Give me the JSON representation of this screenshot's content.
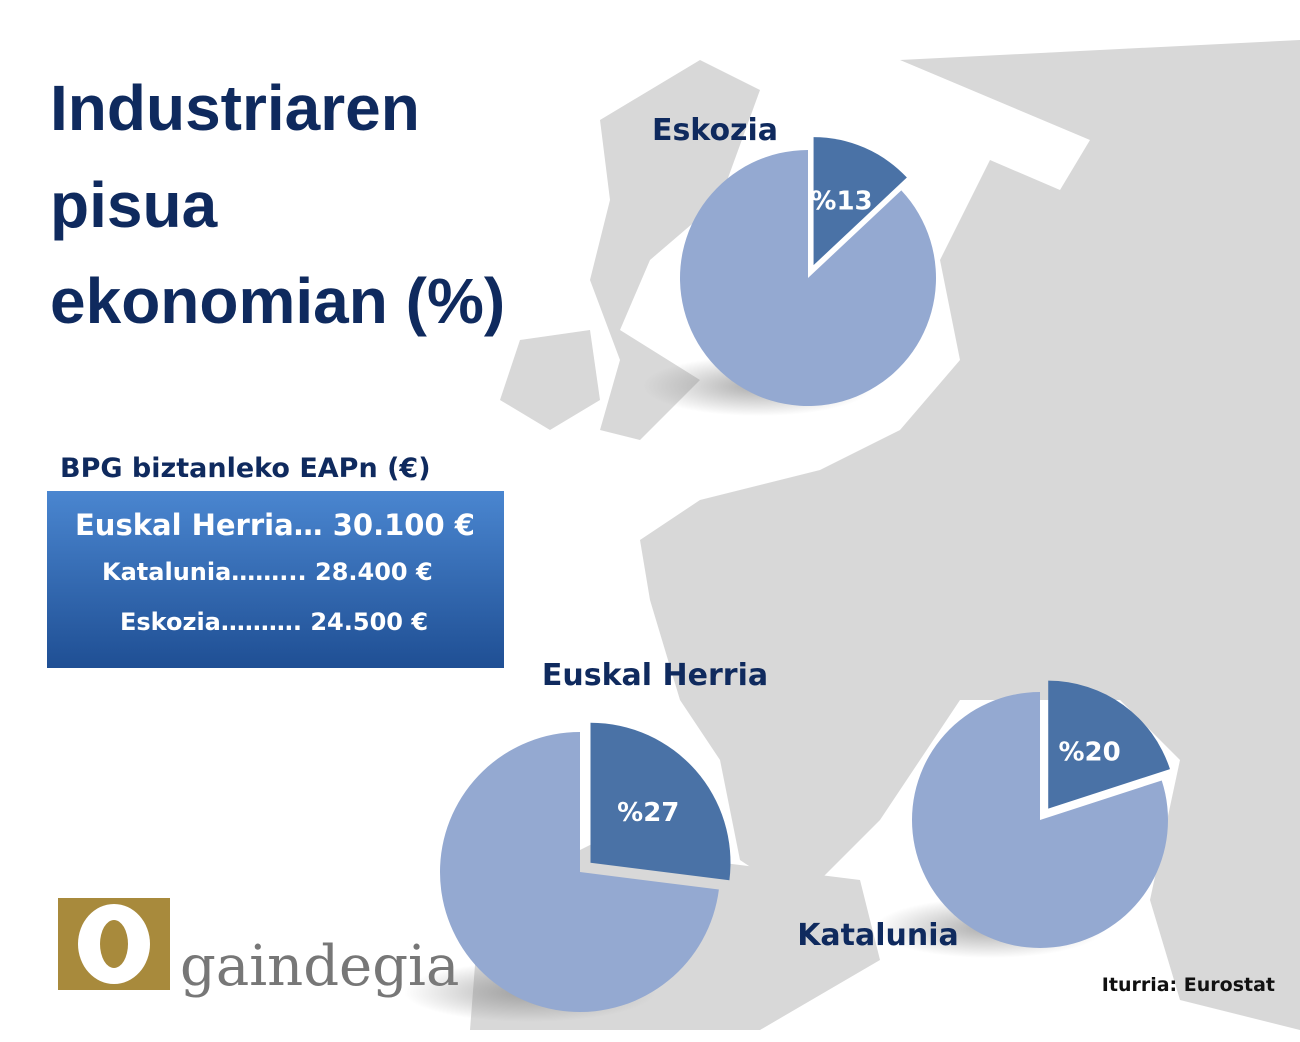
{
  "header": {
    "title_lines": [
      "Industriaren",
      "pisua",
      "ekonomian (%)"
    ]
  },
  "table": {
    "title": "BPG biztanleko EAPn (€)",
    "rows": [
      "Euskal Herria… 30.100 €",
      "Katalunia……... 28.400 €",
      "Eskozia………. 24.500 €"
    ]
  },
  "chart_data": [
    {
      "type": "pie",
      "title": "Eskozia",
      "values": [
        13,
        87
      ],
      "value_labels": [
        "%13",
        null
      ],
      "colors": [
        "#4a72a6",
        "#94a9d1"
      ]
    },
    {
      "type": "pie",
      "title": "Euskal Herria",
      "values": [
        27,
        73
      ],
      "value_labels": [
        "%27",
        null
      ],
      "colors": [
        "#4a72a6",
        "#94a9d1"
      ]
    },
    {
      "type": "pie",
      "title": "Katalunia",
      "values": [
        20,
        80
      ],
      "value_labels": [
        "%20",
        null
      ],
      "colors": [
        "#4a72a6",
        "#94a9d1"
      ]
    }
  ],
  "logo": {
    "text": "gaindegia"
  },
  "source": "Iturria: Eurostat"
}
